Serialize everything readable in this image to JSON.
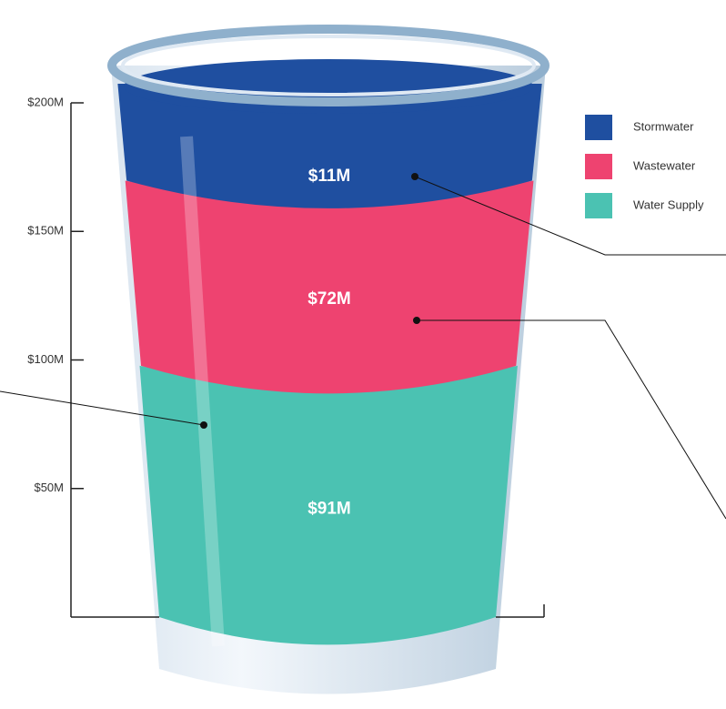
{
  "chart_data": {
    "type": "bar",
    "stacked": true,
    "categories": [
      null
    ],
    "series": [
      {
        "name": "Water Supply",
        "color": "#4bc2b2",
        "values": [
          91
        ],
        "value_labels": [
          "$91M"
        ]
      },
      {
        "name": "Wastewater",
        "color": "#ee4370",
        "values": [
          72
        ],
        "value_labels": [
          "$72M"
        ]
      },
      {
        "name": "Stormwater",
        "color": "#1f4fa0",
        "values": [
          11
        ],
        "value_labels": [
          "$11M"
        ]
      }
    ],
    "ylim": [
      0,
      200
    ],
    "yticks": [
      {
        "value": 50,
        "label": "$50M"
      },
      {
        "value": 100,
        "label": "$100M"
      },
      {
        "value": 150,
        "label": "$150M"
      },
      {
        "value": 200,
        "label": "$200M"
      }
    ],
    "legend": "top-right"
  }
}
